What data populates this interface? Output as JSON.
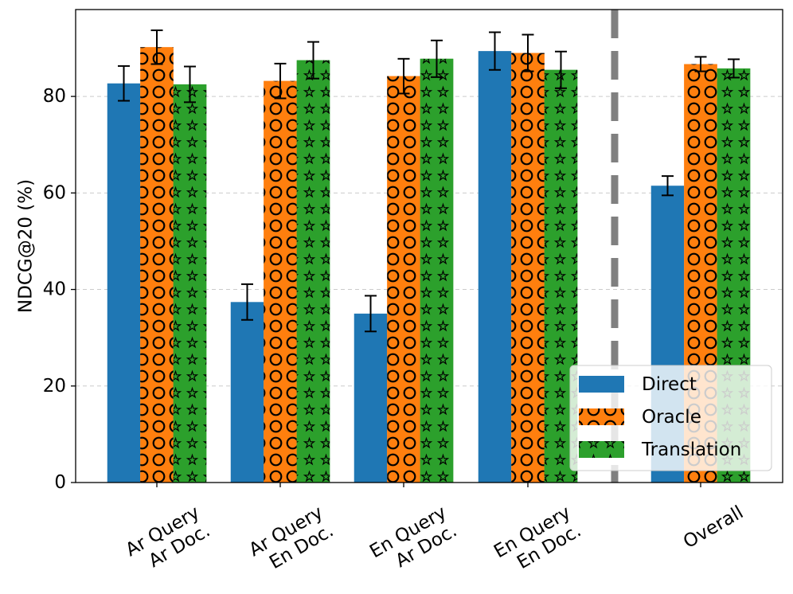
{
  "chart_data": {
    "type": "bar",
    "title": "",
    "xlabel": "",
    "ylabel": "NDCG@20 (%)",
    "ylim": [
      0,
      98
    ],
    "yticks": [
      0,
      20,
      40,
      60,
      80
    ],
    "grid": true,
    "legend_position": "lower-right",
    "categories": [
      [
        "Ar Query",
        "Ar Doc."
      ],
      [
        "Ar Query",
        "En Doc."
      ],
      [
        "En Query",
        "Ar Doc."
      ],
      [
        "En Query",
        "En Doc."
      ],
      [
        "Overall"
      ]
    ],
    "separator_after_category": 3,
    "series": [
      {
        "name": "Direct",
        "color": "#1f77b4",
        "hatch": "none",
        "values": [
          82.7,
          37.4,
          35.0,
          89.4,
          61.5
        ],
        "errors": [
          3.6,
          3.7,
          3.7,
          3.9,
          2.0
        ]
      },
      {
        "name": "Oracle",
        "color": "#ff7f0e",
        "hatch": "circles",
        "values": [
          90.2,
          83.2,
          84.2,
          89.0,
          86.7
        ],
        "errors": [
          3.5,
          3.6,
          3.6,
          3.8,
          1.5
        ]
      },
      {
        "name": "Translation",
        "color": "#2ca02c",
        "hatch": "stars",
        "values": [
          82.5,
          87.5,
          87.8,
          85.5,
          85.8
        ],
        "errors": [
          3.7,
          3.8,
          3.8,
          3.8,
          1.9
        ]
      }
    ]
  }
}
